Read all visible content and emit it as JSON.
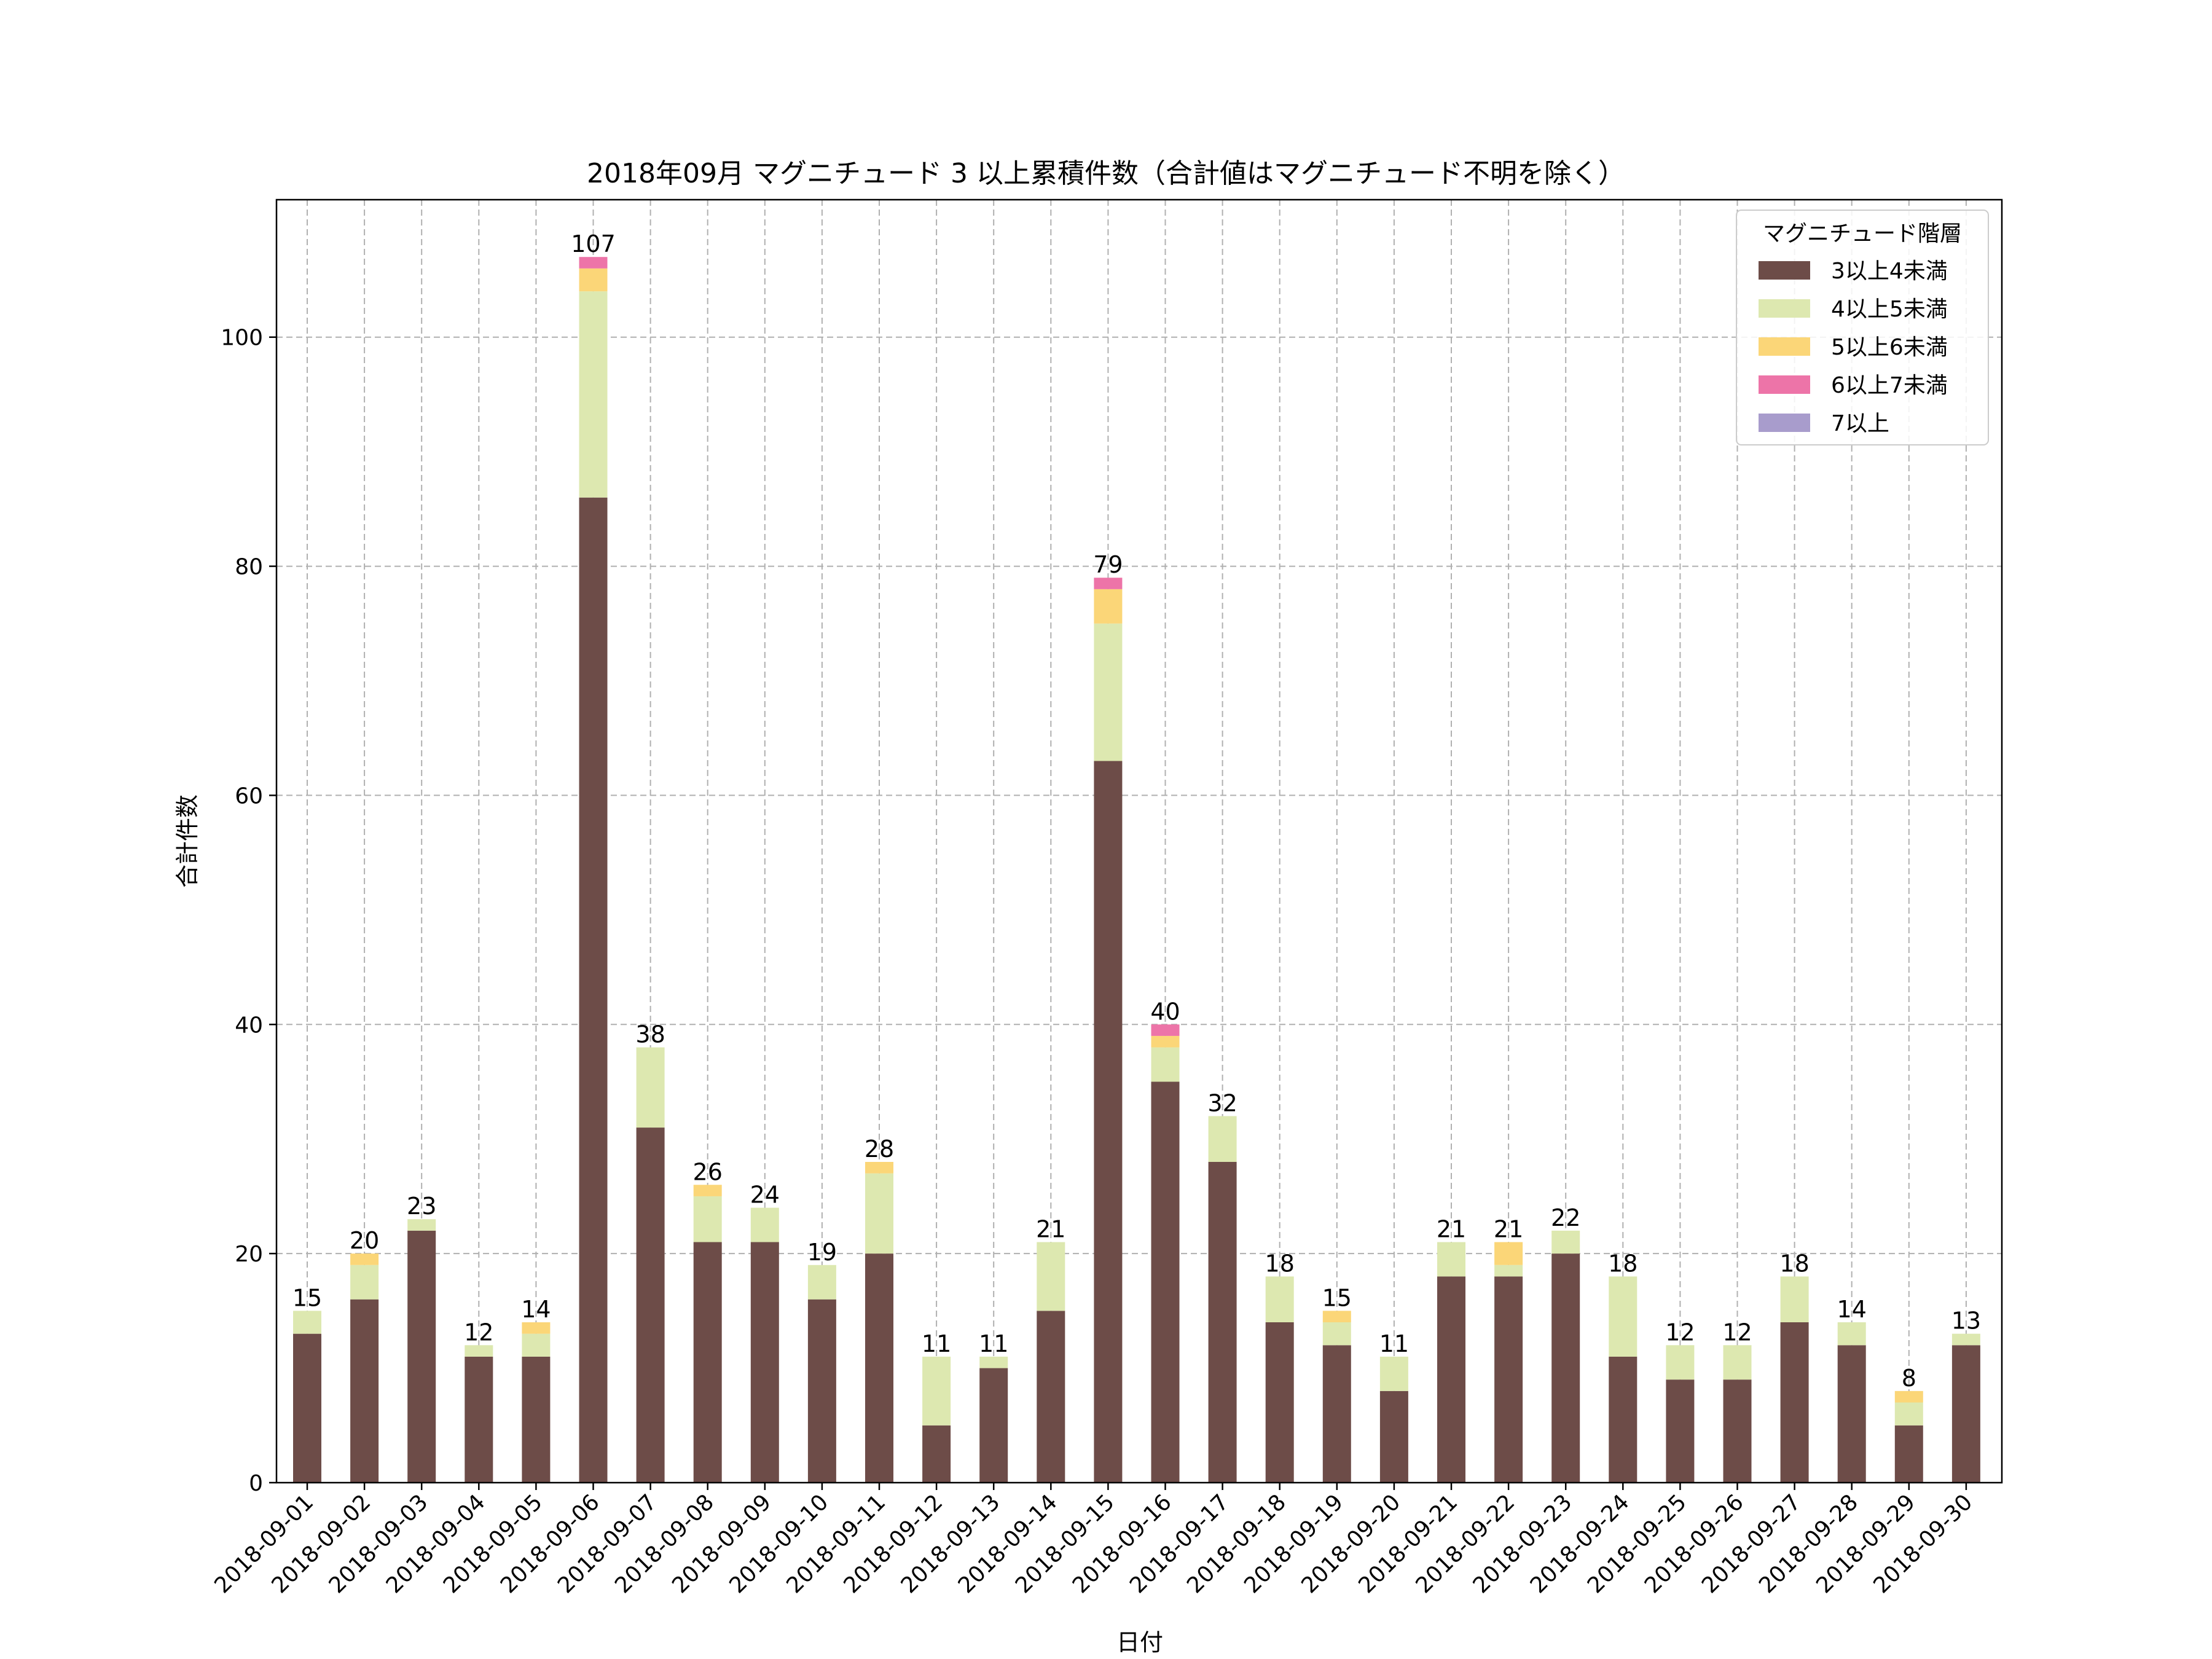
{
  "chart_data": {
    "type": "bar",
    "stacked": true,
    "title": "2018年09月 マグニチュード 3 以上累積件数（合計値はマグニチュード不明を除く）",
    "xlabel": "日付",
    "ylabel": "合計件数",
    "ylim": [
      0,
      112
    ],
    "yticks": [
      0,
      20,
      40,
      60,
      80,
      100
    ],
    "grid": true,
    "legend_title": "マグニチュード階層",
    "legend_position": "top-right",
    "categories": [
      "2018-09-01",
      "2018-09-02",
      "2018-09-03",
      "2018-09-04",
      "2018-09-05",
      "2018-09-06",
      "2018-09-07",
      "2018-09-08",
      "2018-09-09",
      "2018-09-10",
      "2018-09-11",
      "2018-09-12",
      "2018-09-13",
      "2018-09-14",
      "2018-09-15",
      "2018-09-16",
      "2018-09-17",
      "2018-09-18",
      "2018-09-19",
      "2018-09-20",
      "2018-09-21",
      "2018-09-22",
      "2018-09-23",
      "2018-09-24",
      "2018-09-25",
      "2018-09-26",
      "2018-09-27",
      "2018-09-28",
      "2018-09-29",
      "2018-09-30"
    ],
    "series": [
      {
        "name": "3以上4未満",
        "color": "#6d4c48",
        "values": [
          13,
          16,
          22,
          11,
          11,
          86,
          31,
          21,
          21,
          16,
          20,
          5,
          10,
          15,
          63,
          35,
          28,
          14,
          12,
          8,
          18,
          18,
          20,
          11,
          9,
          9,
          14,
          12,
          5,
          12
        ]
      },
      {
        "name": "4以上5未満",
        "color": "#dde8b0",
        "values": [
          2,
          3,
          1,
          1,
          2,
          18,
          7,
          4,
          3,
          3,
          7,
          6,
          1,
          6,
          12,
          3,
          4,
          4,
          2,
          3,
          3,
          1,
          2,
          7,
          3,
          3,
          4,
          2,
          2,
          1
        ]
      },
      {
        "name": "5以上6未満",
        "color": "#fbd678",
        "values": [
          0,
          1,
          0,
          0,
          1,
          2,
          0,
          1,
          0,
          0,
          1,
          0,
          0,
          0,
          3,
          1,
          0,
          0,
          1,
          0,
          0,
          2,
          0,
          0,
          0,
          0,
          0,
          0,
          1,
          0
        ]
      },
      {
        "name": "6以上7未満",
        "color": "#ed74a8",
        "values": [
          0,
          0,
          0,
          0,
          0,
          1,
          0,
          0,
          0,
          0,
          0,
          0,
          0,
          0,
          1,
          1,
          0,
          0,
          0,
          0,
          0,
          0,
          0,
          0,
          0,
          0,
          0,
          0,
          0,
          0
        ]
      },
      {
        "name": "7以上",
        "color": "#a89ccc",
        "values": [
          0,
          0,
          0,
          0,
          0,
          0,
          0,
          0,
          0,
          0,
          0,
          0,
          0,
          0,
          0,
          0,
          0,
          0,
          0,
          0,
          0,
          0,
          0,
          0,
          0,
          0,
          0,
          0,
          0,
          0
        ]
      }
    ],
    "totals": [
      15,
      20,
      23,
      12,
      14,
      107,
      38,
      26,
      24,
      19,
      28,
      11,
      11,
      21,
      79,
      40,
      32,
      18,
      15,
      11,
      21,
      21,
      22,
      18,
      12,
      12,
      18,
      14,
      8,
      13
    ]
  }
}
